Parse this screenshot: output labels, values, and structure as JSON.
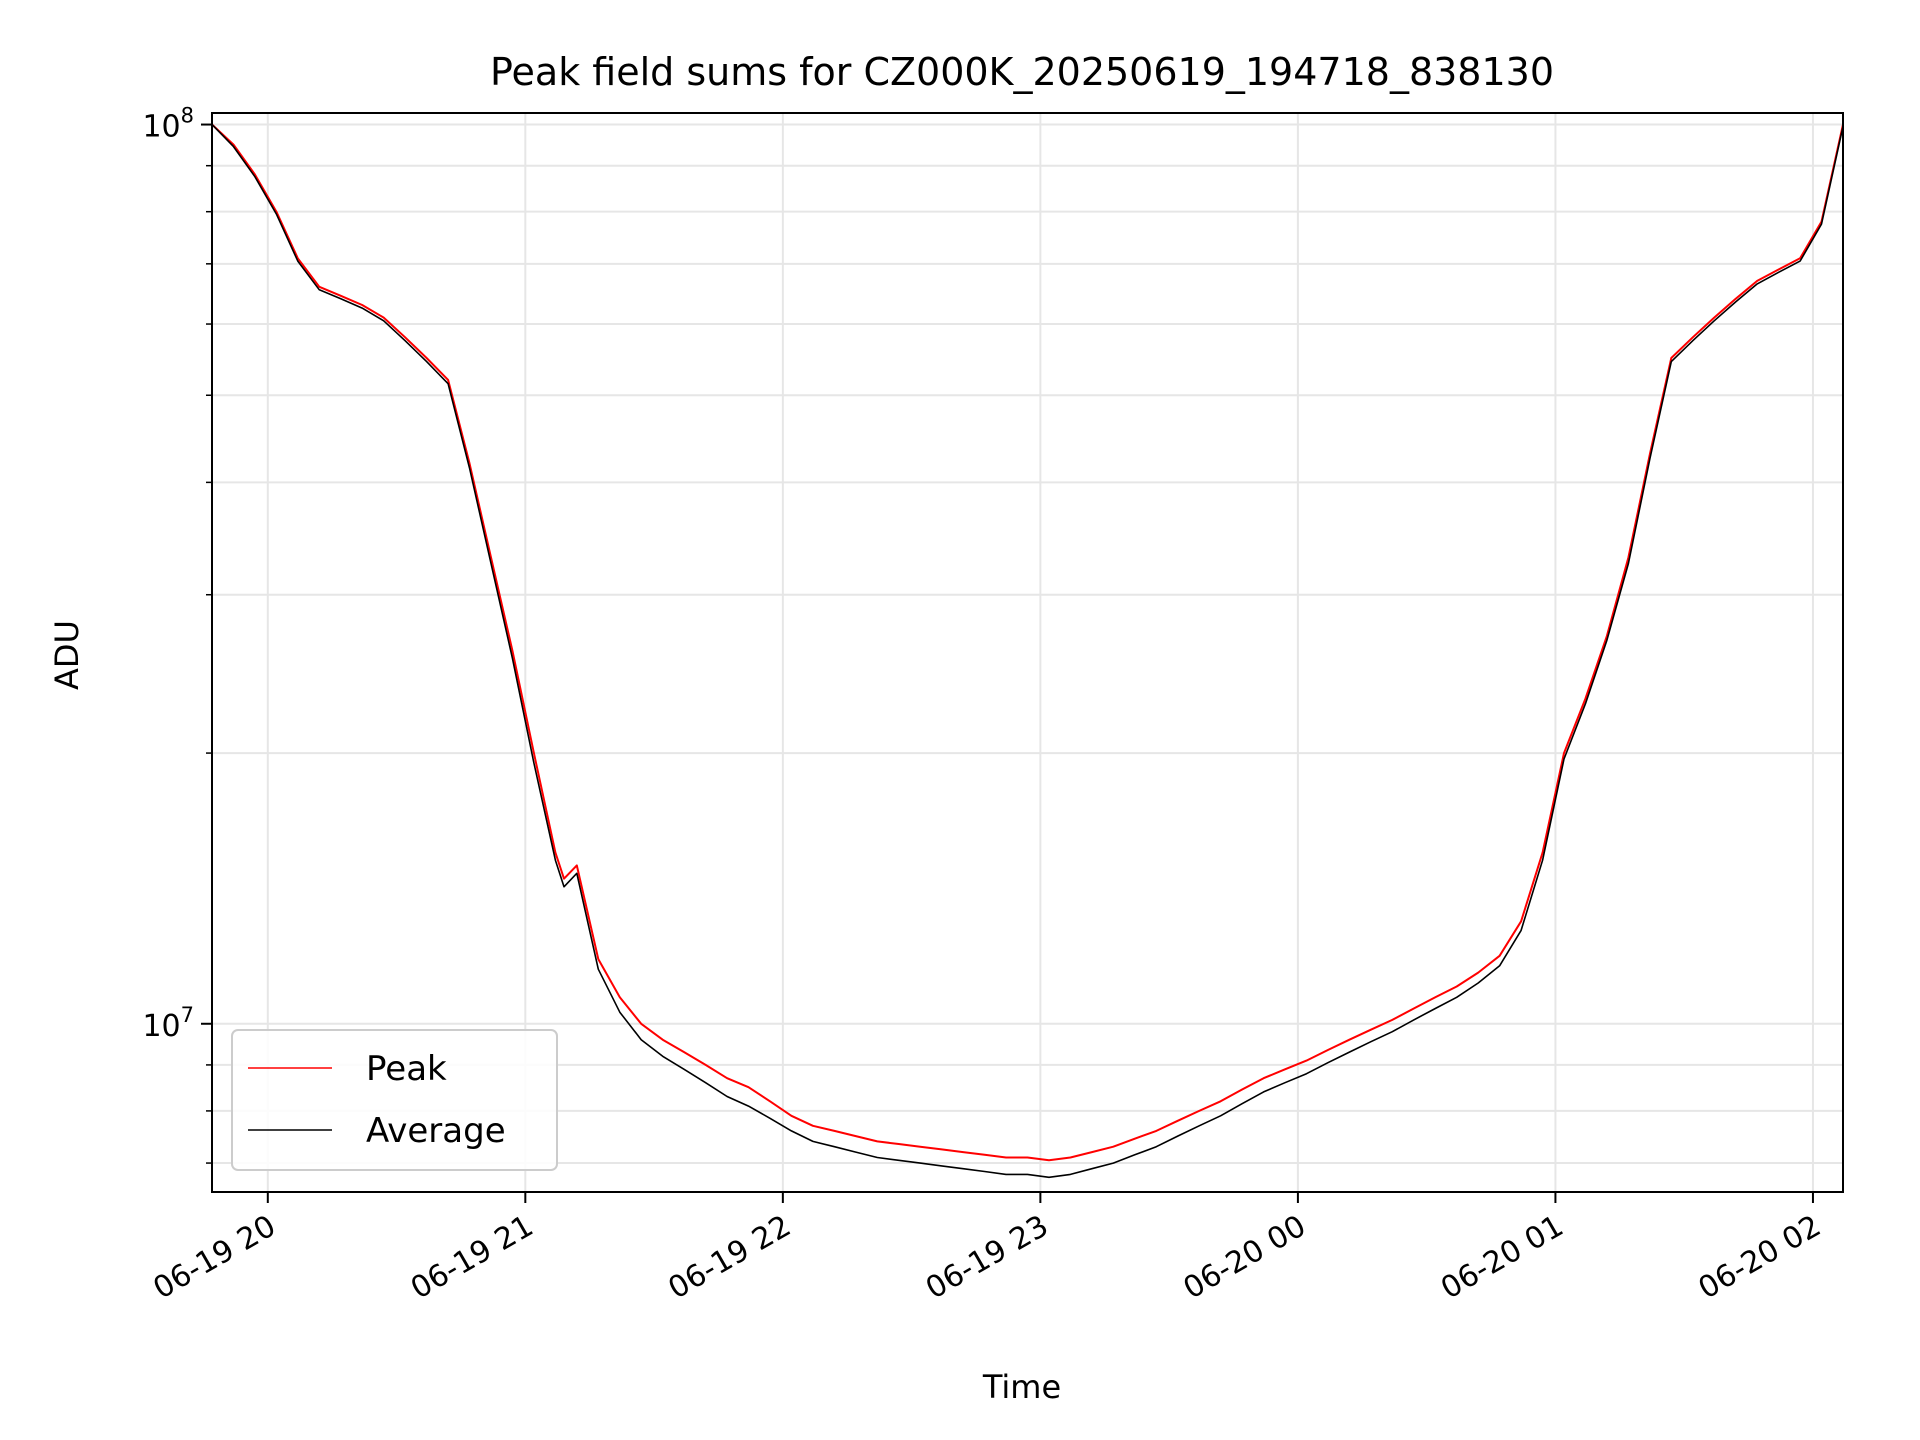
{
  "chart_data": {
    "type": "line",
    "title": "Peak field sums for CZ000K_20250619_194718_838130",
    "xlabel": "Time",
    "ylabel": "ADU",
    "yscale": "log",
    "xlim": [
      "06-19 19:47",
      "06-20 02:07"
    ],
    "ylim": [
      6500000,
      103000000
    ],
    "x_ticks": [
      {
        "t": "06-19 20:00",
        "label": "06-19 20"
      },
      {
        "t": "06-19 21:00",
        "label": "06-19 21"
      },
      {
        "t": "06-19 22:00",
        "label": "06-19 22"
      },
      {
        "t": "06-19 23:00",
        "label": "06-19 23"
      },
      {
        "t": "06-20 00:00",
        "label": "06-20 00"
      },
      {
        "t": "06-20 01:00",
        "label": "06-20 01"
      },
      {
        "t": "06-20 02:00",
        "label": "06-20 02"
      }
    ],
    "y_ticks": [
      {
        "value": 10000000,
        "base": "10",
        "exp": "7"
      },
      {
        "value": 100000000,
        "base": "10",
        "exp": "8"
      }
    ],
    "grid": true,
    "legend": "lower-left",
    "x": [
      "06-19 19:47",
      "06-19 19:52",
      "06-19 19:57",
      "06-19 20:02",
      "06-19 20:07",
      "06-19 20:12",
      "06-19 20:17",
      "06-19 20:22",
      "06-19 20:27",
      "06-19 20:32",
      "06-19 20:37",
      "06-19 20:42",
      "06-19 20:47",
      "06-19 20:52",
      "06-19 20:57",
      "06-19 21:02",
      "06-19 21:07",
      "06-19 21:09",
      "06-19 21:12",
      "06-19 21:17",
      "06-19 21:22",
      "06-19 21:27",
      "06-19 21:32",
      "06-19 21:37",
      "06-19 21:42",
      "06-19 21:47",
      "06-19 21:52",
      "06-19 21:57",
      "06-19 22:02",
      "06-19 22:07",
      "06-19 22:12",
      "06-19 22:17",
      "06-19 22:22",
      "06-19 22:27",
      "06-19 22:32",
      "06-19 22:37",
      "06-19 22:42",
      "06-19 22:47",
      "06-19 22:52",
      "06-19 22:57",
      "06-19 23:02",
      "06-19 23:07",
      "06-19 23:12",
      "06-19 23:17",
      "06-19 23:22",
      "06-19 23:27",
      "06-19 23:32",
      "06-19 23:37",
      "06-19 23:42",
      "06-19 23:47",
      "06-19 23:52",
      "06-19 23:57",
      "06-20 00:02",
      "06-20 00:07",
      "06-20 00:12",
      "06-20 00:17",
      "06-20 00:22",
      "06-20 00:27",
      "06-20 00:32",
      "06-20 00:37",
      "06-20 00:42",
      "06-20 00:47",
      "06-20 00:52",
      "06-20 00:57",
      "06-20 01:02",
      "06-20 01:07",
      "06-20 01:12",
      "06-20 01:17",
      "06-20 01:22",
      "06-20 01:27",
      "06-20 01:32",
      "06-20 01:37",
      "06-20 01:42",
      "06-20 01:47",
      "06-20 01:52",
      "06-20 01:57",
      "06-20 02:02",
      "06-20 02:07"
    ],
    "series": [
      {
        "name": "Peak",
        "color": "#ff0000",
        "values": [
          100000000,
          95000000,
          88000000,
          80000000,
          71000000,
          66000000,
          64500000,
          63000000,
          61000000,
          58000000,
          55000000,
          52000000,
          42000000,
          33000000,
          26000000,
          20000000,
          15500000,
          14500000,
          15000000,
          11800000,
          10700000,
          10000000,
          9600000,
          9300000,
          9000000,
          8700000,
          8500000,
          8200000,
          7900000,
          7700000,
          7600000,
          7500000,
          7400000,
          7350000,
          7300000,
          7250000,
          7200000,
          7150000,
          7100000,
          7100000,
          7050000,
          7100000,
          7200000,
          7300000,
          7450000,
          7600000,
          7800000,
          8000000,
          8200000,
          8450000,
          8700000,
          8900000,
          9100000,
          9350000,
          9600000,
          9850000,
          10100000,
          10400000,
          10700000,
          11000000,
          11400000,
          11900000,
          13000000,
          15500000,
          20000000,
          23000000,
          27000000,
          33000000,
          43000000,
          55000000,
          58000000,
          61000000,
          64000000,
          67000000,
          69000000,
          71000000,
          78000000,
          100000000
        ]
      },
      {
        "name": "Average",
        "color": "#000000",
        "values": [
          100000000,
          94500000,
          87500000,
          79500000,
          70500000,
          65500000,
          64000000,
          62500000,
          60500000,
          57500000,
          54500000,
          51500000,
          41500000,
          32500000,
          25500000,
          19500000,
          15200000,
          14200000,
          14700000,
          11500000,
          10300000,
          9600000,
          9200000,
          8900000,
          8600000,
          8300000,
          8100000,
          7850000,
          7600000,
          7400000,
          7300000,
          7200000,
          7100000,
          7050000,
          7000000,
          6950000,
          6900000,
          6850000,
          6800000,
          6800000,
          6750000,
          6800000,
          6900000,
          7000000,
          7150000,
          7300000,
          7500000,
          7700000,
          7900000,
          8150000,
          8400000,
          8600000,
          8800000,
          9050000,
          9300000,
          9550000,
          9800000,
          10100000,
          10400000,
          10700000,
          11100000,
          11600000,
          12700000,
          15200000,
          19700000,
          22700000,
          26700000,
          32500000,
          42500000,
          54500000,
          57500000,
          60500000,
          63500000,
          66500000,
          68500000,
          70500000,
          77500000,
          99500000
        ]
      }
    ]
  }
}
